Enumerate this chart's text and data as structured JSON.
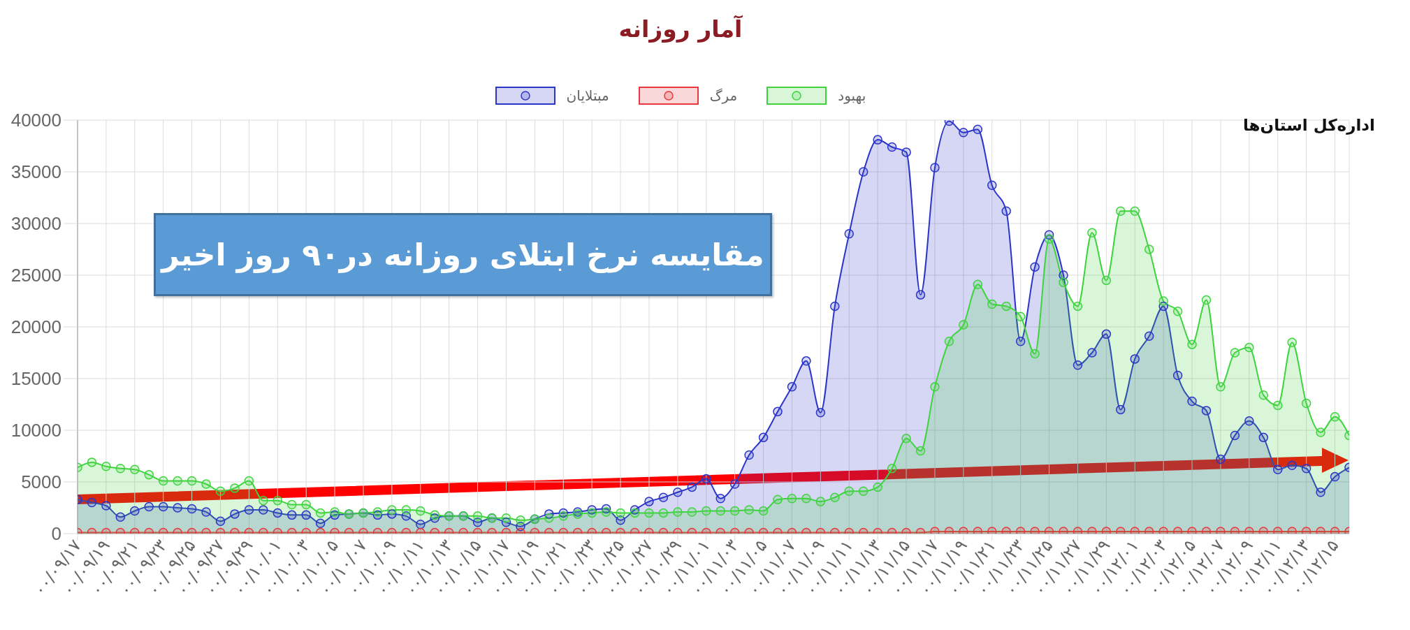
{
  "chart_data": {
    "type": "area",
    "title": "آمار روزانه",
    "categories": [
      "۰۰/۰۹/۱۷",
      null,
      "۰۰/۰۹/۱۹",
      null,
      "۰۰/۰۹/۲۱",
      null,
      "۰۰/۰۹/۲۳",
      null,
      "۰۰/۰۹/۲۵",
      null,
      "۰۰/۰۹/۲۷",
      null,
      "۰۰/۰۹/۲۹",
      null,
      "۰۰/۱۰/۰۱",
      null,
      "۰۰/۱۰/۰۳",
      null,
      "۰۰/۱۰/۰۵",
      null,
      "۰۰/۱۰/۰۷",
      null,
      "۰۰/۱۰/۰۹",
      null,
      "۰۰/۱۰/۱۱",
      null,
      "۰۰/۱۰/۱۳",
      null,
      "۰۰/۱۰/۱۵",
      null,
      "۰۰/۱۰/۱۷",
      null,
      "۰۰/۱۰/۱۹",
      null,
      "۰۰/۱۰/۲۱",
      null,
      "۰۰/۱۰/۲۳",
      null,
      "۰۰/۱۰/۲۵",
      null,
      "۰۰/۱۰/۲۷",
      null,
      "۰۰/۱۰/۲۹",
      null,
      "۰۰/۱۱/۰۱",
      null,
      "۰۰/۱۱/۰۳",
      null,
      "۰۰/۱۱/۰۵",
      null,
      "۰۰/۱۱/۰۷",
      null,
      "۰۰/۱۱/۰۹",
      null,
      "۰۰/۱۱/۱۱",
      null,
      "۰۰/۱۱/۱۳",
      null,
      "۰۰/۱۱/۱۵",
      null,
      "۰۰/۱۱/۱۷",
      null,
      "۰۰/۱۱/۱۹",
      null,
      "۰۰/۱۱/۲۱",
      null,
      "۰۰/۱۱/۲۳",
      null,
      "۰۰/۱۱/۲۵",
      null,
      "۰۰/۱۱/۲۷",
      null,
      "۰۰/۱۱/۲۹",
      null,
      "۰۰/۱۲/۰۱",
      null,
      "۰۰/۱۲/۰۳",
      null,
      "۰۰/۱۲/۰۵",
      null,
      "۰۰/۱۲/۰۷",
      null,
      "۰۰/۱۲/۰۹",
      null,
      "۰۰/۱۲/۱۱",
      null,
      "۰۰/۱۲/۱۳",
      null,
      "۰۰/۱۲/۱۵",
      null
    ],
    "series": [
      {
        "name": "مبتلایان",
        "color": "#2b35c8",
        "values": [
          3300,
          3000,
          2700,
          1600,
          2200,
          2600,
          2600,
          2500,
          2400,
          2100,
          1200,
          1900,
          2300,
          2300,
          2000,
          1800,
          1800,
          1000,
          1800,
          1900,
          2000,
          1800,
          1900,
          1700,
          900,
          1500,
          1700,
          1700,
          1100,
          1500,
          1100,
          700,
          1400,
          1900,
          2000,
          2100,
          2300,
          2400,
          1300,
          2300,
          3100,
          3500,
          4000,
          4500,
          5300,
          3400,
          4800,
          7600,
          9300,
          11800,
          14200,
          16700,
          11700,
          22000,
          29000,
          35000,
          38100,
          37400,
          36900,
          23100,
          35400,
          39900,
          38800,
          39100,
          33700,
          31200,
          18600,
          25800,
          28900,
          25000,
          16300,
          17500,
          19300,
          12000,
          16900,
          19100,
          22000,
          15300,
          12800,
          11900,
          7200,
          9500,
          10900,
          9300,
          6200,
          6600,
          6300,
          4000,
          5500,
          6400
        ]
      },
      {
        "name": "مرگ",
        "color": "#e8383d",
        "values": [
          100,
          100,
          100,
          100,
          100,
          100,
          100,
          100,
          100,
          100,
          100,
          100,
          100,
          100,
          100,
          100,
          100,
          100,
          100,
          100,
          100,
          100,
          100,
          100,
          100,
          100,
          100,
          100,
          100,
          100,
          100,
          100,
          100,
          100,
          100,
          100,
          100,
          100,
          100,
          100,
          100,
          100,
          100,
          100,
          100,
          100,
          100,
          100,
          100,
          100,
          100,
          100,
          100,
          100,
          100,
          100,
          100,
          100,
          100,
          100,
          200,
          200,
          200,
          200,
          200,
          200,
          200,
          200,
          200,
          200,
          200,
          200,
          200,
          200,
          200,
          200,
          200,
          200,
          200,
          200,
          200,
          200,
          200,
          200,
          200,
          200,
          200,
          200,
          200,
          200
        ]
      },
      {
        "name": "بهبود",
        "color": "#3fd43f",
        "values": [
          6400,
          6900,
          6500,
          6300,
          6200,
          5700,
          5100,
          5100,
          5100,
          4800,
          4100,
          4400,
          5100,
          3200,
          3200,
          2800,
          2800,
          2000,
          2100,
          1900,
          2000,
          2100,
          2300,
          2300,
          2200,
          1800,
          1700,
          1700,
          1700,
          1500,
          1500,
          1300,
          1400,
          1500,
          1700,
          1900,
          2000,
          2100,
          2000,
          2000,
          2000,
          2000,
          2100,
          2100,
          2200,
          2200,
          2200,
          2300,
          2200,
          3300,
          3400,
          3400,
          3100,
          3500,
          4100,
          4100,
          4500,
          6300,
          9200,
          8000,
          14200,
          18600,
          20200,
          24100,
          22200,
          22000,
          21000,
          17400,
          28500,
          24300,
          22000,
          29100,
          24500,
          31200,
          31200,
          27500,
          22500,
          21500,
          18300,
          22600,
          14200,
          17500,
          18000,
          13400,
          12400,
          18500,
          12600,
          9800,
          11300,
          9500
        ]
      }
    ],
    "ylim": [
      0,
      40000
    ],
    "yticks": [
      0,
      5000,
      10000,
      15000,
      20000,
      25000,
      30000,
      35000,
      40000
    ],
    "grid": true,
    "legend": "top",
    "marker": "circle",
    "annotations": [
      "مقایسه نرخ ابتلای روزانه در۹۰ روز اخیر",
      "اداره‌کل استان‌ها"
    ]
  }
}
